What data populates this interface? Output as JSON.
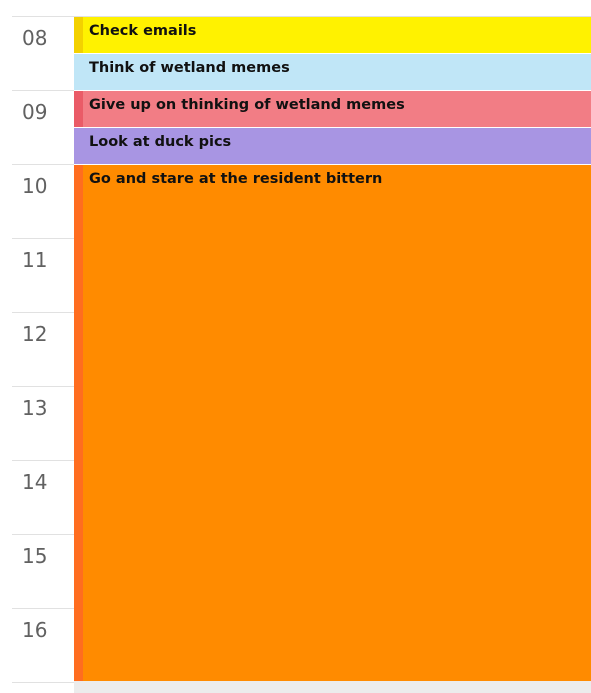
{
  "calendar": {
    "hours": [
      "08",
      "09",
      "10",
      "11",
      "12",
      "13",
      "14",
      "15",
      "16"
    ],
    "events": [
      {
        "title": "Check emails",
        "color": "#FFF200",
        "accent": "#F3D100"
      },
      {
        "title": "Think of wetland memes",
        "color": "#C0E6F7",
        "accent": "#C0E6F7"
      },
      {
        "title": "Give up on thinking of wetland memes",
        "color": "#F27D85",
        "accent": "#EA5B67"
      },
      {
        "title": "Look at duck pics",
        "color": "#A895E3",
        "accent": "#A895E3"
      },
      {
        "title": "Go and stare at the resident bittern",
        "color": "#FF8B00",
        "accent": "#FF6D1F"
      }
    ]
  }
}
